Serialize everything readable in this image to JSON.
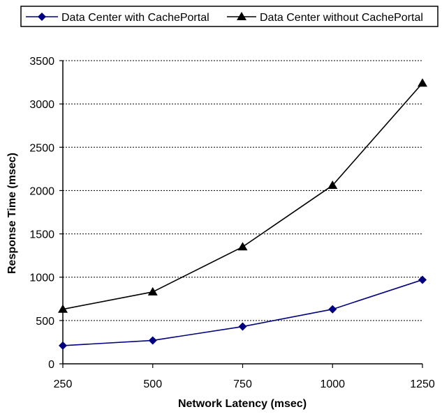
{
  "chart_data": {
    "type": "line",
    "title": "",
    "xlabel": "Network Latency (msec)",
    "ylabel": "Response Time (msec)",
    "x": [
      250,
      500,
      750,
      1000,
      1250
    ],
    "x_tick_labels": [
      "250",
      "500",
      "750",
      "1000",
      "1250"
    ],
    "ylim": [
      0,
      3500
    ],
    "y_ticks": [
      0,
      500,
      1000,
      1500,
      2000,
      2500,
      3000,
      3500
    ],
    "y_tick_labels": [
      "0",
      "500",
      "1000",
      "1500",
      "2000",
      "2500",
      "3000",
      "3500"
    ],
    "grid": "horizontal dotted",
    "legend_position": "top",
    "series": [
      {
        "name": "Data Center with CachePortal",
        "values": [
          210,
          270,
          430,
          630,
          970
        ],
        "color": "#000080",
        "marker": "diamond"
      },
      {
        "name": "Data Center without CachePortal",
        "values": [
          630,
          830,
          1350,
          2060,
          3240
        ],
        "color": "#000000",
        "marker": "triangle"
      }
    ]
  }
}
